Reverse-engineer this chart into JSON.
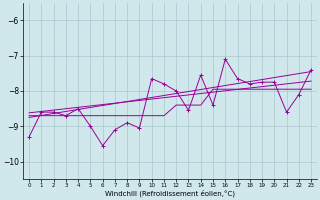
{
  "xlabel": "Windchill (Refroidissement éolien,°C)",
  "bg_color": "#d0e8ec",
  "grid_color": "#aac8cc",
  "line_color": "#990099",
  "xlim": [
    -0.5,
    23.5
  ],
  "ylim": [
    -10.5,
    -5.5
  ],
  "yticks": [
    -10,
    -9,
    -8,
    -7,
    -6
  ],
  "xticks": [
    0,
    1,
    2,
    3,
    4,
    5,
    6,
    7,
    8,
    9,
    10,
    11,
    12,
    13,
    14,
    15,
    16,
    17,
    18,
    19,
    20,
    21,
    22,
    23
  ],
  "y_main": [
    -9.3,
    -8.6,
    -8.6,
    -8.7,
    -8.5,
    -9.0,
    -9.55,
    -9.1,
    -8.9,
    -9.05,
    -7.65,
    -7.8,
    -8.0,
    -8.55,
    -7.55,
    -8.4,
    -7.1,
    -7.65,
    -7.8,
    -7.75,
    -7.75,
    -8.6,
    -8.1,
    -7.4
  ],
  "y_smooth": [
    -8.7,
    -8.7,
    -8.7,
    -8.7,
    -8.7,
    -8.7,
    -8.7,
    -8.7,
    -8.7,
    -8.7,
    -8.7,
    -8.7,
    -8.4,
    -8.4,
    -8.4,
    -7.95,
    -7.95,
    -7.95,
    -7.95,
    -7.95,
    -7.95,
    -7.95,
    -7.95,
    -7.95
  ],
  "trend1": [
    -8.75,
    -7.45
  ],
  "trend2": [
    -8.62,
    -7.72
  ]
}
